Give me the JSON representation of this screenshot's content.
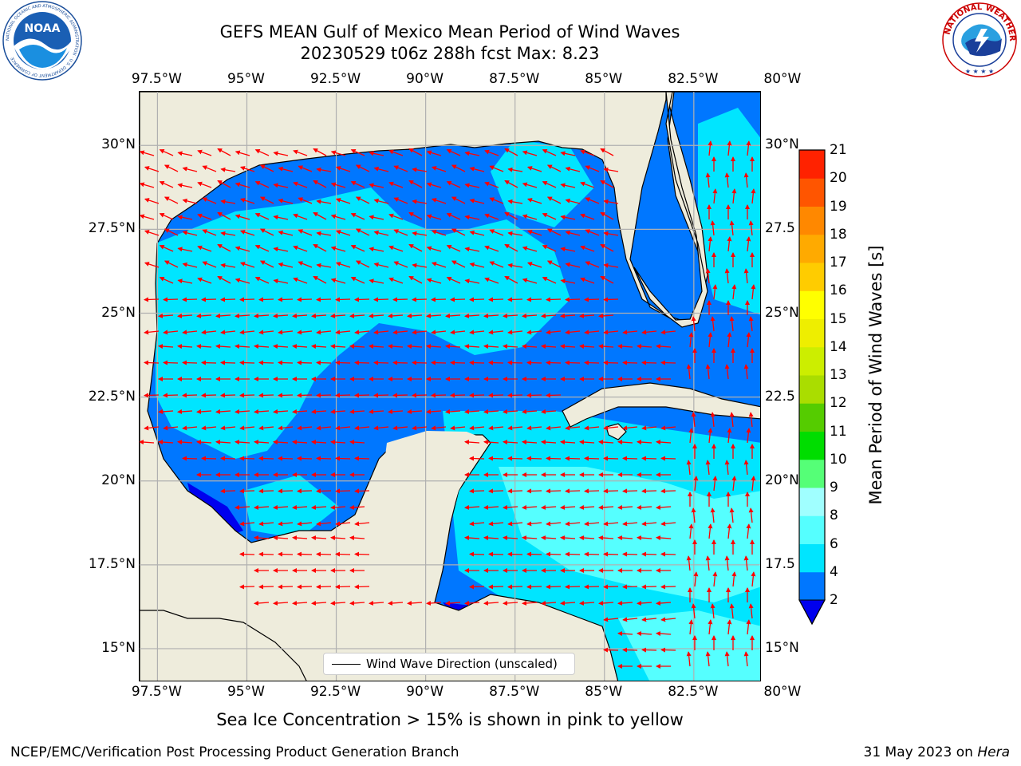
{
  "header": {
    "title_line1": "GEFS MEAN Gulf of Mexico Mean Period of Wind Waves",
    "title_line2": "20230529 t06z 288h fcst   Max: 8.23"
  },
  "logos": {
    "noaa": "NOAA",
    "noaa_ring": "NATIONAL OCEANIC AND ATMOSPHERIC ADMINISTRATION · U.S. DEPARTMENT OF COMMERCE",
    "nws_ring": "NATIONAL WEATHER SERVICE"
  },
  "map": {
    "lon_labels": [
      "97.5°W",
      "95°W",
      "92.5°W",
      "90°W",
      "87.5°W",
      "85°W",
      "82.5°W",
      "80°W"
    ],
    "lat_labels_left": [
      "30°N",
      "27.5°N",
      "25°N",
      "22.5°N",
      "20°N",
      "17.5°N",
      "15°N"
    ],
    "lat_labels_right": [
      "30°N",
      "27.5",
      "25°N",
      "22.5",
      "20°N",
      "17.5",
      "15°N"
    ],
    "lon_range": [
      -98,
      -80.6
    ],
    "lat_range": [
      14.0,
      31.6
    ],
    "legend_label": "Wind Wave Direction (unscaled)",
    "colors": {
      "land": "#eeecdc",
      "coast": "#000000",
      "arrow": "#ff0000",
      "grid": "#b0b0b0"
    }
  },
  "colorbar": {
    "label": "Mean Period of Wind Waves [s]",
    "ticks": [
      "2",
      "4",
      "6",
      "8",
      "9",
      "10",
      "11",
      "12",
      "13",
      "14",
      "15",
      "16",
      "17",
      "18",
      "19",
      "20",
      "21"
    ],
    "colors": [
      "#0077ff",
      "#00e5ff",
      "#55ffff",
      "#a0ffff",
      "#55ff77",
      "#00dd00",
      "#55cc00",
      "#aadd00",
      "#ccee00",
      "#eeee00",
      "#ffff00",
      "#ffcc00",
      "#ffaa00",
      "#ff8800",
      "#ff5500",
      "#ff2200"
    ],
    "under_color": "#0000ee"
  },
  "notes": {
    "ice_note": "Sea Ice Concentration > 15% is shown in pink to yellow",
    "footer_left": "NCEP/EMC/Verification Post Processing Product Generation Branch",
    "footer_date": "31 May 2023 on ",
    "footer_host": "Hera"
  }
}
